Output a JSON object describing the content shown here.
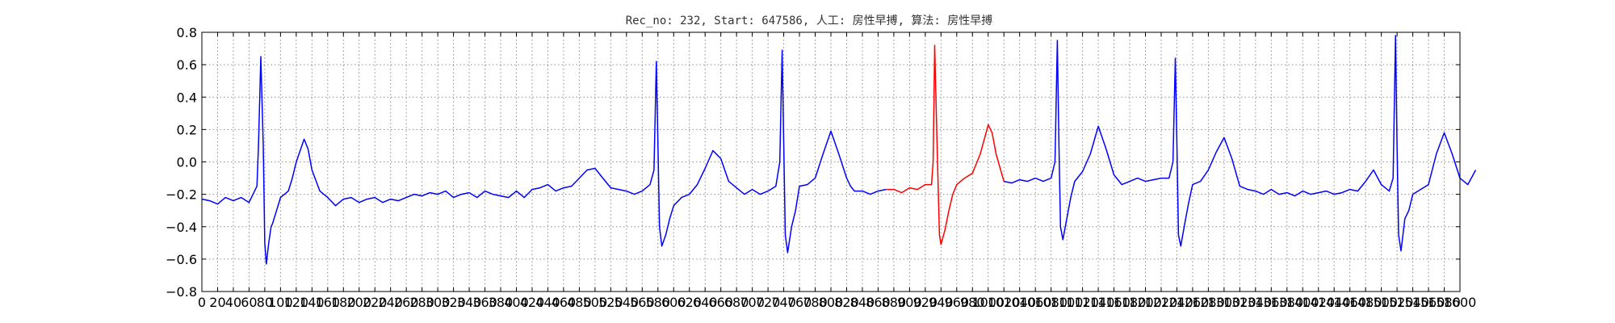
{
  "chart_data": {
    "type": "line",
    "title": "Rec_no: 232, Start: 647586, 人工: 房性早搏, 算法: 房性早搏",
    "xlabel": "",
    "ylabel": "",
    "xlim": [
      0,
      1600
    ],
    "ylim": [
      -0.8,
      0.8
    ],
    "grid": true,
    "grid_style": "dotted",
    "yticks": [
      -0.8,
      -0.6,
      -0.4,
      -0.2,
      0.0,
      0.2,
      0.4,
      0.6,
      0.8
    ],
    "ytick_labels": [
      "−0.8",
      "−0.6",
      "−0.4",
      "−0.2",
      "0.0",
      "0.2",
      "0.4",
      "0.6",
      "0.8"
    ],
    "xticks": [
      0,
      20,
      40,
      60,
      80,
      100,
      120,
      140,
      160,
      180,
      200,
      220,
      240,
      260,
      280,
      300,
      320,
      340,
      360,
      380,
      400,
      420,
      440,
      460,
      480,
      500,
      520,
      540,
      560,
      580,
      600,
      620,
      640,
      660,
      680,
      700,
      720,
      740,
      760,
      780,
      800,
      820,
      840,
      860,
      880,
      900,
      920,
      940,
      960,
      980,
      1000,
      1020,
      1040,
      1060,
      1080,
      1100,
      1120,
      1140,
      1160,
      1180,
      1200,
      1220,
      1240,
      1260,
      1280,
      1300,
      1320,
      1340,
      1360,
      1380,
      1400,
      1420,
      1440,
      1460,
      1480,
      1500,
      1520,
      1540,
      1560,
      1580,
      1600
    ],
    "colors": {
      "normal": "#0000ff",
      "highlight": "#ff0000",
      "grid": "#8c8c8c",
      "axes": "#000000"
    },
    "series": [
      {
        "color": "#0000ff",
        "x": [
          0,
          10,
          20,
          30,
          40,
          50,
          60,
          70,
          72,
          75,
          78,
          80,
          82,
          85,
          88,
          90,
          95,
          100,
          110,
          115,
          120,
          130,
          135,
          140,
          150,
          160,
          170,
          180,
          190,
          200,
          210,
          220,
          230,
          240,
          250,
          260,
          270,
          280,
          290,
          300,
          310,
          320,
          330,
          340,
          350,
          360,
          370,
          380,
          390,
          400,
          410,
          420,
          430,
          440,
          450,
          460,
          470,
          480,
          490,
          500,
          510,
          520,
          530,
          540,
          550,
          560,
          570,
          575,
          578,
          580,
          582,
          585,
          590,
          595,
          600,
          610,
          620,
          630,
          640,
          650,
          660,
          670,
          680,
          690,
          700,
          710,
          720,
          730,
          735,
          738,
          740,
          742,
          745,
          750,
          755,
          760,
          770,
          780,
          790,
          800,
          810,
          820,
          825,
          830,
          840,
          850,
          860,
          870
        ],
        "y": [
          -0.23,
          -0.24,
          -0.26,
          -0.22,
          -0.24,
          -0.22,
          -0.25,
          -0.15,
          0.1,
          0.65,
          0.1,
          -0.5,
          -0.63,
          -0.5,
          -0.4,
          -0.38,
          -0.3,
          -0.22,
          -0.18,
          -0.1,
          0.0,
          0.14,
          0.08,
          -0.05,
          -0.18,
          -0.22,
          -0.27,
          -0.23,
          -0.22,
          -0.25,
          -0.23,
          -0.22,
          -0.25,
          -0.23,
          -0.24,
          -0.22,
          -0.2,
          -0.21,
          -0.19,
          -0.2,
          -0.18,
          -0.22,
          -0.2,
          -0.19,
          -0.22,
          -0.18,
          -0.2,
          -0.21,
          -0.22,
          -0.18,
          -0.22,
          -0.17,
          -0.16,
          -0.14,
          -0.18,
          -0.16,
          -0.15,
          -0.1,
          -0.05,
          -0.04,
          -0.1,
          -0.16,
          -0.17,
          -0.18,
          -0.2,
          -0.18,
          -0.14,
          -0.05,
          0.62,
          0.1,
          -0.4,
          -0.52,
          -0.45,
          -0.35,
          -0.27,
          -0.22,
          -0.2,
          -0.14,
          -0.04,
          0.07,
          0.02,
          -0.12,
          -0.16,
          -0.2,
          -0.17,
          -0.2,
          -0.18,
          -0.15,
          0.0,
          0.69,
          0.1,
          -0.45,
          -0.56,
          -0.4,
          -0.3,
          -0.15,
          -0.14,
          -0.1,
          0.05,
          0.19,
          0.05,
          -0.1,
          -0.15,
          -0.18,
          -0.18,
          -0.2,
          -0.18,
          -0.17
        ]
      },
      {
        "color": "#ff0000",
        "x": [
          870,
          880,
          890,
          900,
          910,
          920,
          928,
          930,
          932,
          935,
          938,
          940,
          945,
          950,
          955,
          960,
          970,
          980,
          990,
          1000,
          1005,
          1010,
          1020
        ],
        "y": [
          -0.17,
          -0.17,
          -0.19,
          -0.16,
          -0.17,
          -0.14,
          -0.14,
          0.0,
          0.72,
          0.1,
          -0.45,
          -0.51,
          -0.42,
          -0.3,
          -0.2,
          -0.14,
          -0.1,
          -0.07,
          0.05,
          0.23,
          0.18,
          0.05,
          -0.12
        ]
      },
      {
        "color": "#0000ff",
        "x": [
          1020,
          1030,
          1040,
          1050,
          1060,
          1070,
          1080,
          1085,
          1088,
          1090,
          1092,
          1095,
          1100,
          1105,
          1110,
          1120,
          1130,
          1140,
          1150,
          1160,
          1170,
          1180,
          1190,
          1200,
          1210,
          1220,
          1230,
          1235,
          1238,
          1240,
          1242,
          1245,
          1250,
          1255,
          1260,
          1270,
          1280,
          1290,
          1300,
          1310,
          1320,
          1330,
          1340,
          1350,
          1360,
          1370,
          1380,
          1390,
          1400,
          1410,
          1420,
          1430,
          1440,
          1450,
          1460,
          1470,
          1480,
          1490,
          1500,
          1510,
          1515,
          1518,
          1520,
          1522,
          1525,
          1530,
          1535,
          1540,
          1550,
          1560,
          1570,
          1580,
          1590,
          1600,
          1610,
          1620
        ],
        "y": [
          -0.12,
          -0.13,
          -0.11,
          -0.12,
          -0.1,
          -0.12,
          -0.1,
          0.0,
          0.75,
          0.1,
          -0.4,
          -0.48,
          -0.35,
          -0.22,
          -0.12,
          -0.06,
          0.05,
          0.22,
          0.08,
          -0.08,
          -0.14,
          -0.12,
          -0.1,
          -0.12,
          -0.11,
          -0.1,
          -0.1,
          0.0,
          0.64,
          0.1,
          -0.45,
          -0.52,
          -0.38,
          -0.25,
          -0.14,
          -0.12,
          -0.05,
          0.06,
          0.15,
          0.02,
          -0.15,
          -0.17,
          -0.18,
          -0.2,
          -0.17,
          -0.2,
          -0.19,
          -0.21,
          -0.18,
          -0.2,
          -0.19,
          -0.18,
          -0.2,
          -0.19,
          -0.17,
          -0.18,
          -0.12,
          -0.05,
          -0.14,
          -0.18,
          -0.1,
          0.78,
          0.1,
          -0.45,
          -0.55,
          -0.35,
          -0.3,
          -0.2,
          -0.17,
          -0.14,
          0.05,
          0.18,
          0.05,
          -0.1,
          -0.14,
          -0.05
        ]
      }
    ]
  }
}
